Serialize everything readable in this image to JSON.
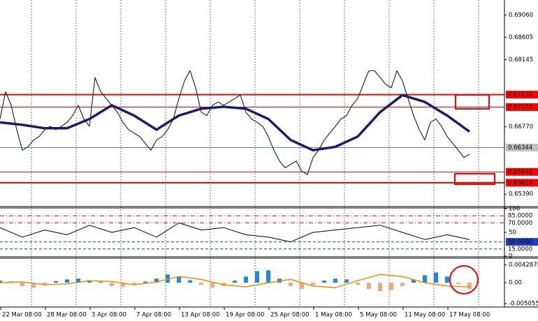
{
  "chart_data": [
    {
      "type": "line",
      "xlim": [
        0,
        90.25
      ],
      "xticks": [
        {
          "value": 0,
          "label": "22 Mar 08:00"
        },
        {
          "value": 8,
          "label": "28 Mar 08:00"
        },
        {
          "value": 16,
          "label": "3 Apr 08:00"
        },
        {
          "value": 24,
          "label": "7 Apr 08:00"
        },
        {
          "value": 32,
          "label": "13 Apr 08:00"
        },
        {
          "value": 40,
          "label": "19 Apr 08:00"
        },
        {
          "value": 48,
          "label": "25 Apr 08:00"
        },
        {
          "value": 56,
          "label": "1 May 08:00"
        },
        {
          "value": 64,
          "label": "5 May 08:00"
        },
        {
          "value": 72,
          "label": "11 May 08:00"
        },
        {
          "value": 80,
          "label": "17 May 08:00"
        }
      ],
      "ylim": [
        0.6515,
        0.6934
      ],
      "yticks": [
        {
          "value": 0.6906,
          "label": "0.69060"
        },
        {
          "value": 0.68605,
          "label": "0.68605"
        },
        {
          "value": 0.68145,
          "label": "0.68145"
        },
        {
          "value": 0.6677,
          "label": "0.66770"
        },
        {
          "value": 0.6539,
          "label": "0.65390"
        }
      ],
      "levels": [
        {
          "value": 0.6743,
          "label": "0.67430",
          "color": "#ff0000",
          "width": 2,
          "boxed": true
        },
        {
          "value": 0.67174,
          "label": "0.67174",
          "color": "#ff0000",
          "width": 1,
          "boxed": true
        },
        {
          "value": 0.66344,
          "label": "0.66344",
          "color": "#5b7fd6",
          "width": 1,
          "boxed": true,
          "box_color": "#c0c0c0"
        },
        {
          "value": 0.65846,
          "label": "0.65846",
          "color": "#ff0000",
          "width": 1,
          "boxed": true
        },
        {
          "value": 0.65624,
          "label": "0.65624",
          "color": "#ff0000",
          "width": 2,
          "boxed": true
        }
      ],
      "series": [
        {
          "color": "#2b2b2b",
          "width": 1.2,
          "x": [
            0,
            1,
            2,
            3,
            4,
            5,
            6,
            7,
            8,
            9,
            10,
            11,
            12,
            13,
            14,
            15,
            16,
            17,
            18,
            19,
            20,
            21,
            22,
            23,
            24,
            25,
            26,
            27,
            28,
            29,
            30,
            31,
            32,
            33,
            34,
            35,
            36,
            37,
            38,
            39,
            40,
            41,
            42,
            43,
            44,
            45,
            46,
            47,
            48,
            49,
            50,
            51,
            52,
            53,
            54,
            55,
            56,
            57,
            58,
            59,
            60,
            61,
            62,
            63,
            64,
            65,
            66,
            67,
            68,
            69,
            70,
            71,
            72,
            73,
            74,
            75,
            76,
            77,
            78,
            79,
            80,
            81,
            82,
            83,
            84
          ],
          "values": [
            0.6693,
            0.6749,
            0.6721,
            0.6671,
            0.6629,
            0.6636,
            0.665,
            0.6657,
            0.6671,
            0.6678,
            0.6671,
            0.6678,
            0.6686,
            0.67,
            0.6721,
            0.6693,
            0.6678,
            0.6778,
            0.6749,
            0.6735,
            0.6721,
            0.6707,
            0.6686,
            0.6671,
            0.6664,
            0.6657,
            0.6643,
            0.6629,
            0.665,
            0.6657,
            0.6671,
            0.6693,
            0.6735,
            0.6771,
            0.6792,
            0.6757,
            0.6707,
            0.67,
            0.6721,
            0.6728,
            0.6721,
            0.6728,
            0.6735,
            0.6742,
            0.6707,
            0.6693,
            0.6686,
            0.6678,
            0.6657,
            0.6629,
            0.6607,
            0.6593,
            0.66,
            0.6607,
            0.6586,
            0.6579,
            0.6614,
            0.6629,
            0.665,
            0.6664,
            0.6678,
            0.6693,
            0.67,
            0.6721,
            0.6735,
            0.6764,
            0.6792,
            0.6792,
            0.6778,
            0.6764,
            0.6757,
            0.6792,
            0.6771,
            0.6735,
            0.67,
            0.6671,
            0.665,
            0.6686,
            0.6693,
            0.6678,
            0.6657,
            0.6643,
            0.6629,
            0.6614,
            0.6621
          ]
        },
        {
          "color": "#1c1c6b",
          "width": 3.5,
          "x": [
            0,
            4,
            8,
            12,
            16,
            20,
            24,
            28,
            32,
            36,
            40,
            44,
            48,
            52,
            56,
            60,
            64,
            68,
            72,
            76,
            80,
            84
          ],
          "values": [
            0.6686,
            0.6681,
            0.6674,
            0.6674,
            0.6693,
            0.6721,
            0.67,
            0.6671,
            0.67,
            0.6714,
            0.6718,
            0.6714,
            0.6693,
            0.665,
            0.6629,
            0.6636,
            0.6657,
            0.6707,
            0.6742,
            0.6728,
            0.67,
            0.6667
          ]
        }
      ]
    },
    {
      "type": "line",
      "xlim": [
        0,
        90.25
      ],
      "ylim": [
        0,
        100
      ],
      "yticks": [
        100,
        50,
        0
      ],
      "levels": [
        {
          "value": 85,
          "label": "85.0000",
          "color": "#ff0000",
          "width": 1,
          "boxed": false,
          "dash": "6 3 1 3"
        },
        {
          "value": 70,
          "label": "70.0000",
          "color": "#ff0000",
          "width": 1,
          "boxed": false,
          "dash": "6 3 1 3"
        },
        {
          "value": 30,
          "label": "30.0000",
          "color": "#1f3fbf",
          "width": 1,
          "boxed": true,
          "dash": "4 3"
        },
        {
          "value": 15,
          "label": "15.0000",
          "color": "#1f3fbf",
          "width": 1,
          "boxed": false,
          "dash": "4 3"
        }
      ],
      "series": [
        {
          "color": "#000000",
          "width": 1,
          "x": [
            0,
            4,
            8,
            12,
            16,
            20,
            24,
            28,
            32,
            36,
            40,
            44,
            48,
            52,
            56,
            60,
            64,
            68,
            72,
            76,
            80,
            84
          ],
          "values": [
            60,
            40,
            55,
            45,
            65,
            50,
            60,
            40,
            70,
            55,
            60,
            45,
            40,
            30,
            50,
            55,
            60,
            65,
            50,
            35,
            45,
            35
          ]
        }
      ]
    },
    {
      "type": "bar",
      "xlim": [
        0,
        90.25
      ],
      "ylim": [
        -0.0057108,
        0.0057632
      ],
      "yticks": [
        0.0042879,
        {
          "value": 0,
          "label": "0.00"
        },
        -0.0050552
      ],
      "series": [
        {
          "color": "#1e88e5",
          "negative_color": "#f4a582",
          "x": [
            0,
            2,
            4,
            6,
            8,
            10,
            12,
            14,
            16,
            18,
            20,
            22,
            24,
            26,
            28,
            30,
            32,
            34,
            36,
            38,
            40,
            42,
            44,
            46,
            48,
            50,
            52,
            54,
            56,
            58,
            60,
            62,
            64,
            66,
            68,
            70,
            72,
            74,
            76,
            78,
            80,
            82,
            84
          ],
          "values": [
            0.0005,
            0.0003,
            -0.0008,
            -0.0012,
            -0.0006,
            0.0004,
            0.0008,
            0.001,
            0.0006,
            0.0002,
            -0.0008,
            -0.001,
            -0.0005,
            0.0003,
            0.001,
            0.002,
            0.0015,
            0.0006,
            -0.0005,
            -0.0012,
            -0.0008,
            0.0005,
            0.0015,
            0.0028,
            0.003,
            0.001,
            -0.0008,
            -0.0015,
            -0.0006,
            0.0005,
            0.001,
            0.0008,
            -0.0005,
            -0.0015,
            -0.002,
            -0.0018,
            -0.0008,
            0.0008,
            0.0018,
            0.0025,
            0.0015,
            -0.0003,
            -0.0015
          ]
        },
        {
          "type": "line",
          "color": "#f08c00",
          "width": 1.5,
          "x": [
            0,
            4,
            8,
            12,
            16,
            20,
            24,
            28,
            32,
            36,
            40,
            44,
            48,
            52,
            56,
            60,
            64,
            68,
            72,
            76,
            80,
            84
          ],
          "values": [
            0,
            0.0002,
            -0.0005,
            -0.0003,
            0.0005,
            0.0003,
            -0.0005,
            0.0002,
            0.0015,
            0.0008,
            -0.0005,
            -0.001,
            0,
            0.0008,
            -0.0008,
            -0.0012,
            0.0005,
            0.002,
            0.0015,
            0,
            -0.0008,
            -0.001
          ]
        }
      ]
    }
  ]
}
